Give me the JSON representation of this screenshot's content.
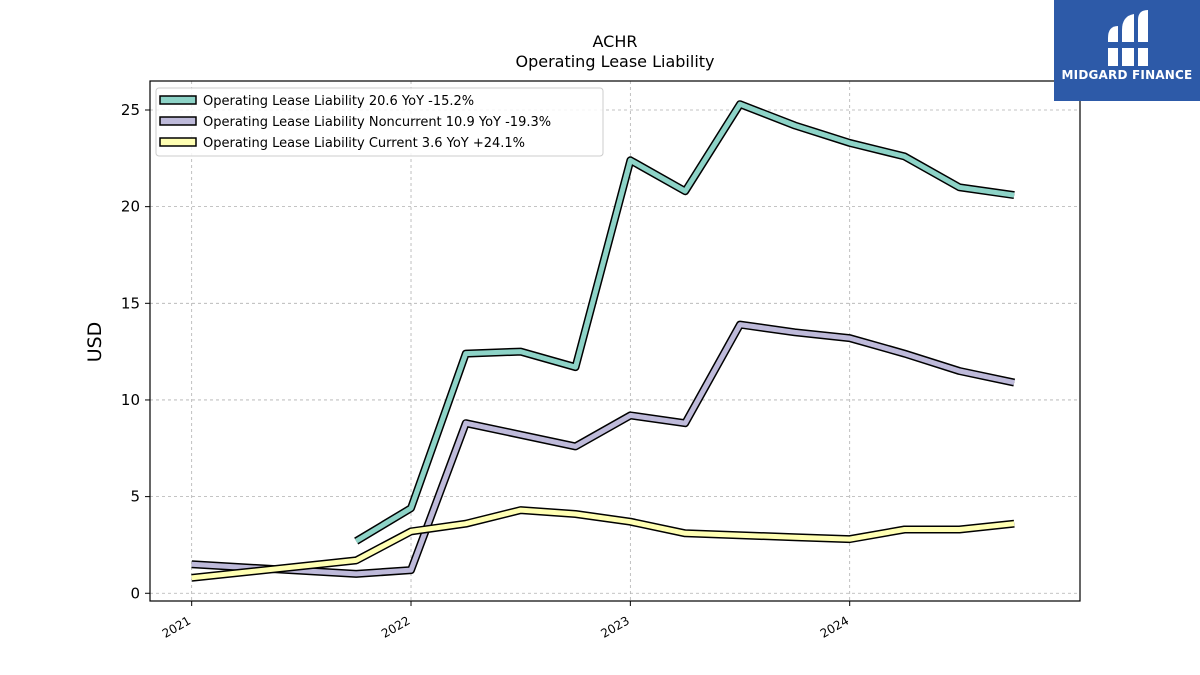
{
  "chart_data": {
    "type": "line",
    "title": "ACHR",
    "subtitle": "Operating Lease Liability",
    "ylabel": "USD",
    "xlabel": "",
    "ylim": [
      -0.4,
      26.5
    ],
    "xlim": [
      2020.81,
      2025.05
    ],
    "yticks": [
      0,
      5,
      10,
      15,
      20,
      25
    ],
    "xticks": [
      2021,
      2022,
      2023,
      2024
    ],
    "grid": true,
    "legend_position": "top-left",
    "series": [
      {
        "name": "Operating Lease Liability  20.6 YoY -15.2%",
        "color": "#8dd3c7",
        "points": [
          [
            2021.75,
            2.7
          ],
          [
            2022.0,
            4.4
          ],
          [
            2022.25,
            12.4
          ],
          [
            2022.5,
            12.5
          ],
          [
            2022.75,
            11.7
          ],
          [
            2023.0,
            22.4
          ],
          [
            2023.25,
            20.8
          ],
          [
            2023.5,
            25.3
          ],
          [
            2023.75,
            24.2
          ],
          [
            2024.0,
            23.3
          ],
          [
            2024.25,
            22.6
          ],
          [
            2024.5,
            21.0
          ],
          [
            2024.75,
            20.6
          ]
        ]
      },
      {
        "name": "Operating Lease Liability Noncurrent  10.9 YoY -19.3%",
        "color": "#bebada",
        "points": [
          [
            2021.0,
            1.5
          ],
          [
            2021.75,
            1.0
          ],
          [
            2022.0,
            1.2
          ],
          [
            2022.25,
            8.8
          ],
          [
            2022.5,
            8.2
          ],
          [
            2022.75,
            7.6
          ],
          [
            2023.0,
            9.2
          ],
          [
            2023.25,
            8.8
          ],
          [
            2023.5,
            13.9
          ],
          [
            2023.75,
            13.5
          ],
          [
            2024.0,
            13.2
          ],
          [
            2024.25,
            12.4
          ],
          [
            2024.5,
            11.5
          ],
          [
            2024.75,
            10.9
          ]
        ]
      },
      {
        "name": "Operating Lease Liability Current  3.6 YoY +24.1%",
        "color": "#ffffb3",
        "points": [
          [
            2021.0,
            0.8
          ],
          [
            2021.75,
            1.7
          ],
          [
            2022.0,
            3.2
          ],
          [
            2022.25,
            3.6
          ],
          [
            2022.5,
            4.3
          ],
          [
            2022.75,
            4.1
          ],
          [
            2023.0,
            3.7
          ],
          [
            2023.25,
            3.1
          ],
          [
            2023.75,
            2.9
          ],
          [
            2024.0,
            2.8
          ],
          [
            2024.25,
            3.3
          ],
          [
            2024.5,
            3.3
          ],
          [
            2024.75,
            3.6
          ]
        ]
      }
    ]
  },
  "logo": {
    "text": "MIDGARD FINANCE",
    "color": "#2d5aa8"
  }
}
